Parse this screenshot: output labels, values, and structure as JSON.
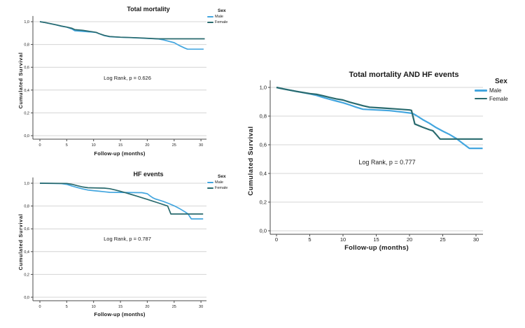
{
  "figure": {
    "background": "#ffffff",
    "text_color": "#1a1a1a",
    "grid_color": "#d4d4d4",
    "axis_color": "#4a4a4a",
    "male_color": "#43a6df",
    "female_color": "#296a6e"
  },
  "chart_data": [
    {
      "type": "line",
      "title": "Total mortality",
      "xlabel": "Follow-up (months)",
      "ylabel": "Cumulated Survival",
      "annotation": "Log Rank, p = 0.626",
      "legend_title": "Sex",
      "legend_position": "right-top-outside",
      "grid": "horizontal",
      "xlim": [
        -1.5,
        31.5
      ],
      "ylim": [
        0,
        1.05
      ],
      "x_ticks": [
        0,
        5,
        10,
        15,
        20,
        25,
        30
      ],
      "y_ticks": [
        0,
        0.2,
        0.4,
        0.6,
        0.8,
        1
      ],
      "y_tick_labels": [
        "0,0",
        "0,2",
        "0,4",
        "0,6",
        "0,8",
        "1,0"
      ],
      "series": [
        {
          "name": "Male",
          "color": "#43a6df",
          "x": [
            0,
            1,
            3,
            4,
            5,
            6,
            6.5,
            8,
            10,
            10.5,
            11,
            12,
            13,
            15,
            17,
            19,
            21,
            22,
            23,
            25,
            26,
            27,
            27.5,
            30.5
          ],
          "y": [
            1.0,
            0.992,
            0.972,
            0.96,
            0.952,
            0.935,
            0.92,
            0.915,
            0.908,
            0.905,
            0.895,
            0.878,
            0.868,
            0.863,
            0.86,
            0.856,
            0.851,
            0.849,
            0.84,
            0.816,
            0.79,
            0.768,
            0.759,
            0.759
          ]
        },
        {
          "name": "Female",
          "color": "#296a6e",
          "x": [
            0,
            1,
            3,
            4,
            5,
            6,
            6.5,
            8,
            10,
            10.5,
            11,
            12,
            13,
            15,
            17,
            19,
            21,
            22,
            30.7
          ],
          "y": [
            1.0,
            0.992,
            0.973,
            0.962,
            0.953,
            0.942,
            0.93,
            0.924,
            0.91,
            0.906,
            0.896,
            0.88,
            0.87,
            0.864,
            0.861,
            0.857,
            0.852,
            0.85,
            0.85
          ]
        }
      ]
    },
    {
      "type": "line",
      "title": "HF events",
      "xlabel": "Follow-up (months)",
      "ylabel": "Cumulated Survival",
      "annotation": "Log Rank, p = 0.787",
      "legend_title": "Sex",
      "legend_position": "right-top-outside",
      "grid": "horizontal",
      "xlim": [
        -1.5,
        31.5
      ],
      "ylim": [
        0,
        1.05
      ],
      "x_ticks": [
        0,
        5,
        10,
        15,
        20,
        25,
        30
      ],
      "y_ticks": [
        0,
        0.2,
        0.4,
        0.6,
        0.8,
        1
      ],
      "y_tick_labels": [
        "0,0",
        "0,2",
        "0,4",
        "0,6",
        "0,8",
        "1,0"
      ],
      "series": [
        {
          "name": "Male",
          "color": "#43a6df",
          "x": [
            0,
            4,
            5,
            6,
            7,
            8,
            9,
            10,
            11,
            12,
            13,
            19,
            20,
            20.5,
            21,
            21.5,
            22,
            23,
            24,
            25,
            26,
            27,
            27.6,
            28.2,
            30.4
          ],
          "y": [
            1.0,
            0.997,
            0.99,
            0.975,
            0.962,
            0.95,
            0.94,
            0.935,
            0.93,
            0.925,
            0.92,
            0.917,
            0.908,
            0.89,
            0.873,
            0.862,
            0.855,
            0.84,
            0.822,
            0.802,
            0.778,
            0.75,
            0.73,
            0.687,
            0.687
          ]
        },
        {
          "name": "Female",
          "color": "#296a6e",
          "x": [
            0,
            5,
            6,
            7,
            8,
            9,
            12,
            13,
            14,
            15,
            16,
            17,
            18,
            19,
            20,
            21,
            22,
            23,
            23.8,
            24.4,
            30.4
          ],
          "y": [
            1.0,
            0.998,
            0.99,
            0.978,
            0.967,
            0.96,
            0.957,
            0.952,
            0.941,
            0.929,
            0.916,
            0.902,
            0.888,
            0.873,
            0.858,
            0.843,
            0.828,
            0.812,
            0.8,
            0.73,
            0.73
          ]
        }
      ]
    },
    {
      "type": "line",
      "title": "Total mortality AND HF events",
      "xlabel": "Follow-up (months)",
      "ylabel": "Cumulated Survival",
      "annotation": "Log Rank, p = 0.777",
      "legend_title": "Sex",
      "legend_position": "right-top-outside",
      "grid": "horizontal",
      "xlim": [
        -1.5,
        31.5
      ],
      "ylim": [
        0,
        1.05
      ],
      "x_ticks": [
        0,
        5,
        10,
        15,
        20,
        25,
        30
      ],
      "y_ticks": [
        0,
        0.2,
        0.4,
        0.6,
        0.8,
        1
      ],
      "y_tick_labels": [
        "0,0",
        "0,2",
        "0,4",
        "0,6",
        "0,8",
        "1,0"
      ],
      "series": [
        {
          "name": "Male",
          "color": "#43a6df",
          "x": [
            0,
            1,
            3,
            5,
            6,
            7,
            8,
            9,
            10,
            11,
            12,
            13,
            15,
            17,
            19,
            20,
            20.5,
            21,
            22,
            23,
            24,
            25,
            26,
            27,
            28,
            29,
            31
          ],
          "y": [
            1.0,
            0.99,
            0.972,
            0.955,
            0.945,
            0.93,
            0.917,
            0.905,
            0.893,
            0.878,
            0.862,
            0.848,
            0.843,
            0.838,
            0.828,
            0.822,
            0.818,
            0.805,
            0.775,
            0.75,
            0.72,
            0.695,
            0.672,
            0.645,
            0.61,
            0.575,
            0.575
          ]
        },
        {
          "name": "Female",
          "color": "#296a6e",
          "x": [
            0,
            1,
            3,
            5,
            6,
            7,
            8,
            9,
            10,
            11,
            12,
            13,
            14,
            16,
            18,
            20,
            20.3,
            20.8,
            22,
            23,
            23.5,
            24,
            24.6,
            31
          ],
          "y": [
            1.0,
            0.99,
            0.972,
            0.957,
            0.952,
            0.942,
            0.93,
            0.92,
            0.912,
            0.897,
            0.885,
            0.872,
            0.862,
            0.856,
            0.85,
            0.843,
            0.84,
            0.745,
            0.722,
            0.705,
            0.698,
            0.672,
            0.64,
            0.64
          ]
        }
      ]
    }
  ]
}
